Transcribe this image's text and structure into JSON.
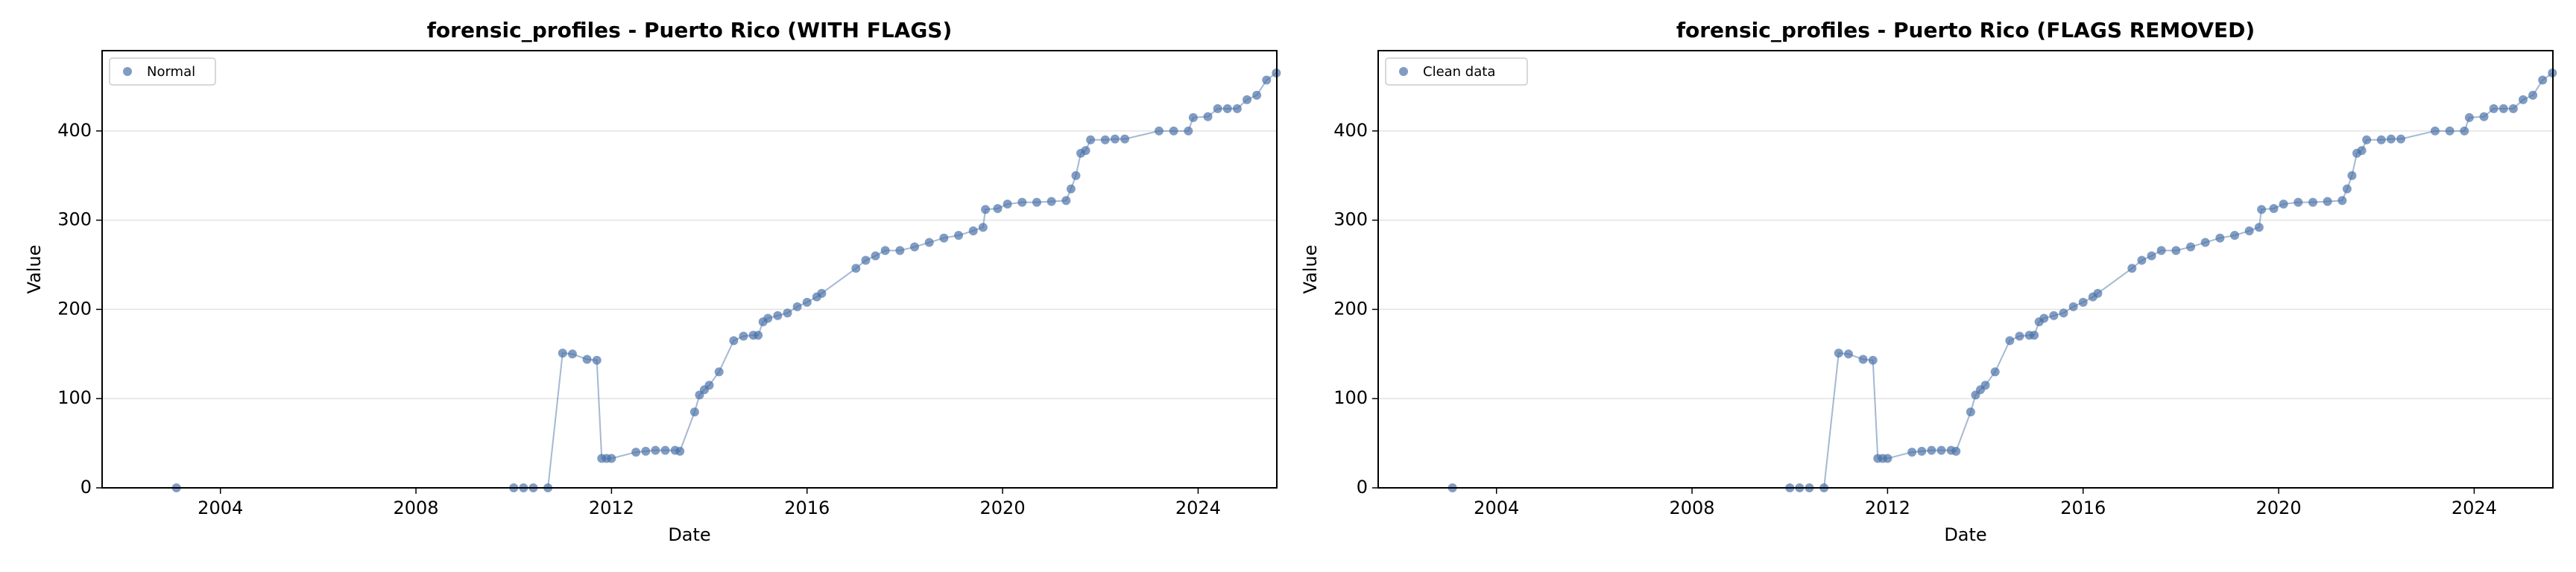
{
  "chart_data": [
    {
      "type": "scatter",
      "title": "forensic_profiles - Puerto Rico (WITH FLAGS)",
      "xlabel": "Date",
      "ylabel": "Value",
      "series": [
        {
          "name": "Normal",
          "color": "#4c72a8",
          "x": [
            2003.1,
            2010.0,
            2010.2,
            2010.4,
            2010.7,
            2011.0,
            2011.2,
            2011.5,
            2011.7,
            2011.8,
            2011.9,
            2012.0,
            2012.5,
            2012.7,
            2012.9,
            2013.1,
            2013.3,
            2013.4,
            2013.7,
            2013.8,
            2013.9,
            2014.0,
            2014.2,
            2014.5,
            2014.7,
            2014.9,
            2015.0,
            2015.1,
            2015.2,
            2015.4,
            2015.6,
            2015.8,
            2016.0,
            2016.2,
            2016.3,
            2017.0,
            2017.2,
            2017.4,
            2017.6,
            2017.9,
            2018.2,
            2018.5,
            2018.8,
            2019.1,
            2019.4,
            2019.6,
            2019.65,
            2019.9,
            2020.1,
            2020.4,
            2020.7,
            2021.0,
            2021.3,
            2021.4,
            2021.5,
            2021.6,
            2021.7,
            2021.8,
            2022.1,
            2022.3,
            2022.5,
            2023.2,
            2023.5,
            2023.8,
            2023.9,
            2024.2,
            2024.4,
            2024.6,
            2024.8,
            2025.0,
            2025.2,
            2025.4,
            2025.6
          ],
          "values": [
            0,
            0,
            0,
            0,
            0,
            151,
            150,
            144,
            143,
            33,
            33,
            33,
            40,
            41,
            42,
            42,
            42,
            41,
            85,
            104,
            110,
            115,
            130,
            165,
            170,
            171,
            171,
            186,
            190,
            193,
            196,
            203,
            208,
            214,
            218,
            246,
            255,
            260,
            266,
            266,
            270,
            275,
            280,
            283,
            288,
            292,
            312,
            313,
            318,
            320,
            320,
            321,
            322,
            335,
            350,
            375,
            378,
            390,
            390,
            391,
            391,
            400,
            400,
            400,
            415,
            416,
            425,
            425,
            425,
            435,
            440,
            457,
            465
          ]
        }
      ],
      "xlim": [
        2001.58,
        2025.61
      ],
      "xticks": [
        2004,
        2008,
        2012,
        2016,
        2020,
        2024
      ],
      "ylim": [
        0,
        490
      ],
      "yticks": [
        0,
        100,
        200,
        300,
        400
      ],
      "grid": true,
      "legend": "upper left"
    },
    {
      "type": "scatter",
      "title": "forensic_profiles - Puerto Rico (FLAGS REMOVED)",
      "xlabel": "Date",
      "ylabel": "Value",
      "series": [
        {
          "name": "Clean data",
          "color": "#4c72a8",
          "x": [
            2003.1,
            2010.0,
            2010.2,
            2010.4,
            2010.7,
            2011.0,
            2011.2,
            2011.5,
            2011.7,
            2011.8,
            2011.9,
            2012.0,
            2012.5,
            2012.7,
            2012.9,
            2013.1,
            2013.3,
            2013.4,
            2013.7,
            2013.8,
            2013.9,
            2014.0,
            2014.2,
            2014.5,
            2014.7,
            2014.9,
            2015.0,
            2015.1,
            2015.2,
            2015.4,
            2015.6,
            2015.8,
            2016.0,
            2016.2,
            2016.3,
            2017.0,
            2017.2,
            2017.4,
            2017.6,
            2017.9,
            2018.2,
            2018.5,
            2018.8,
            2019.1,
            2019.4,
            2019.6,
            2019.65,
            2019.9,
            2020.1,
            2020.4,
            2020.7,
            2021.0,
            2021.3,
            2021.4,
            2021.5,
            2021.6,
            2021.7,
            2021.8,
            2022.1,
            2022.3,
            2022.5,
            2023.2,
            2023.5,
            2023.8,
            2023.9,
            2024.2,
            2024.4,
            2024.6,
            2024.8,
            2025.0,
            2025.2,
            2025.4,
            2025.6
          ],
          "values": [
            0,
            0,
            0,
            0,
            0,
            151,
            150,
            144,
            143,
            33,
            33,
            33,
            40,
            41,
            42,
            42,
            42,
            41,
            85,
            104,
            110,
            115,
            130,
            165,
            170,
            171,
            171,
            186,
            190,
            193,
            196,
            203,
            208,
            214,
            218,
            246,
            255,
            260,
            266,
            266,
            270,
            275,
            280,
            283,
            288,
            292,
            312,
            313,
            318,
            320,
            320,
            321,
            322,
            335,
            350,
            375,
            378,
            390,
            390,
            391,
            391,
            400,
            400,
            400,
            415,
            416,
            425,
            425,
            425,
            435,
            440,
            457,
            465
          ]
        }
      ],
      "xlim": [
        2001.58,
        2025.61
      ],
      "xticks": [
        2004,
        2008,
        2012,
        2016,
        2020,
        2024
      ],
      "ylim": [
        0,
        490
      ],
      "yticks": [
        0,
        100,
        200,
        300,
        400
      ],
      "grid": true,
      "legend": "upper left"
    }
  ]
}
